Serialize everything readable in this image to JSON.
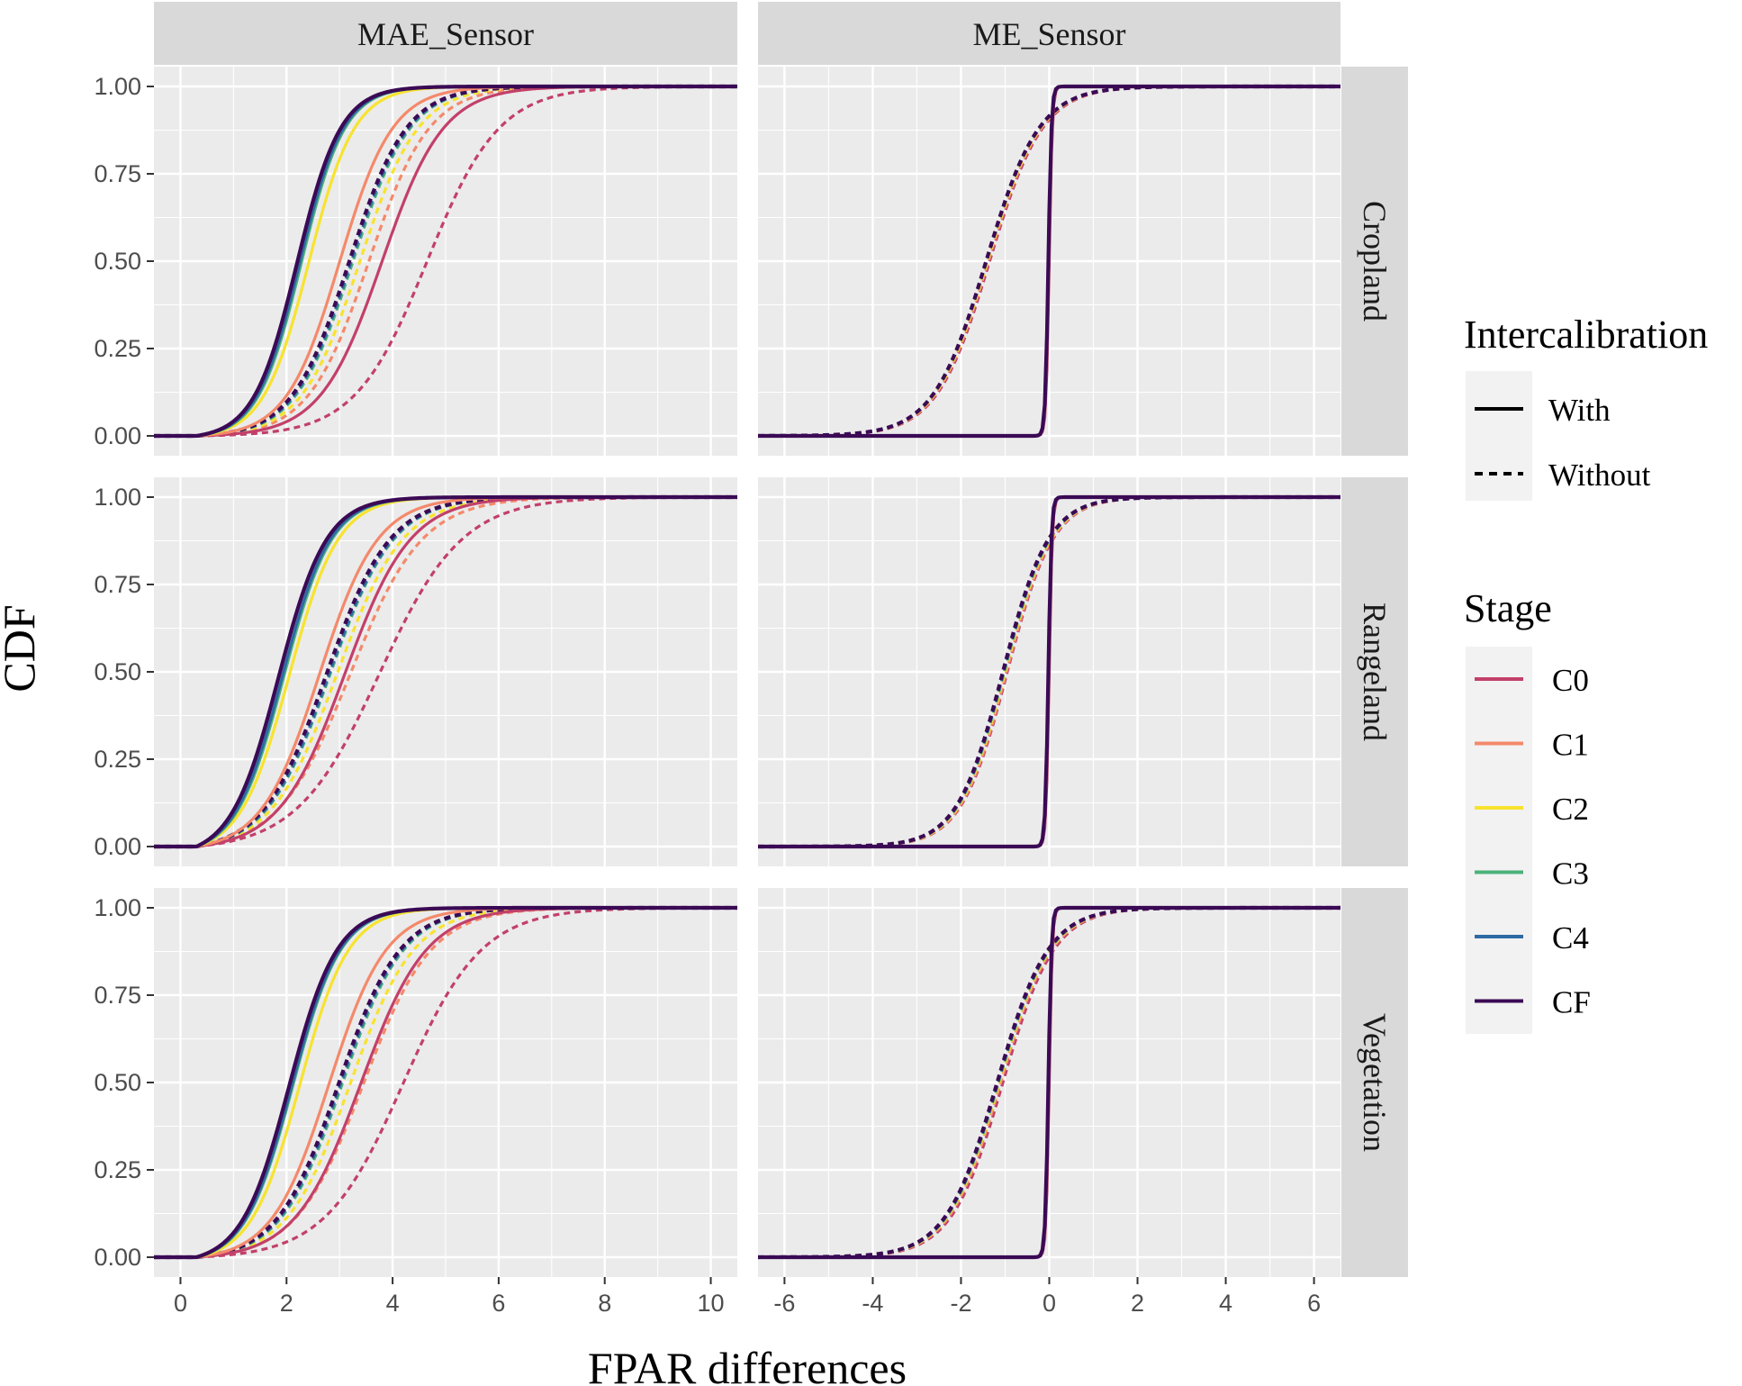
{
  "chart_data": {
    "type": "line",
    "subtype": "faceted CDF curves",
    "ylabel": "CDF",
    "xlabel": "FPAR differences",
    "ylim": [
      0,
      1
    ],
    "y_ticks": [
      "0.00",
      "0.25",
      "0.50",
      "0.75",
      "1.00"
    ],
    "y_tick_values": [
      0,
      0.25,
      0.5,
      0.75,
      1.0
    ],
    "columns": [
      {
        "label": "MAE_Sensor",
        "xlim": [
          -0.5,
          10.5
        ],
        "x_ticks": [
          0,
          2,
          4,
          6,
          8,
          10
        ],
        "x_tick_labels": [
          "0",
          "2",
          "4",
          "6",
          "8",
          "10"
        ]
      },
      {
        "label": "ME_Sensor",
        "xlim": [
          -6.6,
          6.6
        ],
        "x_ticks": [
          -6,
          -4,
          -2,
          0,
          2,
          4,
          6
        ],
        "x_tick_labels": [
          "-6",
          "-4",
          "-2",
          "0",
          "2",
          "4",
          "6"
        ]
      }
    ],
    "rows": [
      "Cropland",
      "Rangeland",
      "Vegetation"
    ],
    "legend_intercalibration": {
      "title": "Intercalibration",
      "items": [
        {
          "label": "With",
          "linetype": "solid"
        },
        {
          "label": "Without",
          "linetype": "dashed"
        }
      ]
    },
    "legend_stage": {
      "title": "Stage",
      "items": [
        {
          "label": "C0",
          "color": "#c2406a"
        },
        {
          "label": "C1",
          "color": "#f4896b"
        },
        {
          "label": "C2",
          "color": "#f7e32e"
        },
        {
          "label": "C3",
          "color": "#4bb27a"
        },
        {
          "label": "C4",
          "color": "#2e6aa3"
        },
        {
          "label": "CF",
          "color": "#3b0a55"
        }
      ]
    },
    "series_params": {
      "note": "Each curve is a logistic CDF with approximate center (median, data units) and scale (data units). One entry per [row][column].",
      "Cropland": {
        "MAE_Sensor": {
          "With": {
            "C0": [
              3.8,
              0.58
            ],
            "C1": [
              3.0,
              0.5
            ],
            "C2": [
              2.42,
              0.43
            ],
            "C3": [
              2.28,
              0.41
            ],
            "C4": [
              2.25,
              0.41
            ],
            "CF": [
              2.2,
              0.41
            ]
          },
          "Without": {
            "C0": [
              4.65,
              0.68
            ],
            "C1": [
              3.55,
              0.57
            ],
            "C2": [
              3.38,
              0.55
            ],
            "C3": [
              3.25,
              0.54
            ],
            "C4": [
              3.22,
              0.54
            ],
            "CF": [
              3.18,
              0.54
            ]
          }
        },
        "ME_Sensor": {
          "With": {
            "C0": [
              0.0,
              0.035
            ],
            "C1": [
              -0.01,
              0.035
            ],
            "C2": [
              -0.02,
              0.035
            ],
            "C3": [
              -0.02,
              0.035
            ],
            "C4": [
              -0.02,
              0.035
            ],
            "CF": [
              -0.02,
              0.035
            ]
          },
          "Without": {
            "C0": [
              -1.35,
              0.6
            ],
            "C1": [
              -1.38,
              0.6
            ],
            "C2": [
              -1.4,
              0.6
            ],
            "C3": [
              -1.42,
              0.6
            ],
            "C4": [
              -1.42,
              0.6
            ],
            "CF": [
              -1.43,
              0.6
            ]
          }
        }
      },
      "Rangeland": {
        "MAE_Sensor": {
          "With": {
            "C0": [
              3.1,
              0.62
            ],
            "C1": [
              2.62,
              0.55
            ],
            "C2": [
              2.05,
              0.46
            ],
            "C3": [
              1.95,
              0.45
            ],
            "C4": [
              1.92,
              0.45
            ],
            "CF": [
              1.85,
              0.45
            ]
          },
          "Without": {
            "C0": [
              3.75,
              0.78
            ],
            "C1": [
              3.2,
              0.68
            ],
            "C2": [
              2.95,
              0.62
            ],
            "C3": [
              2.82,
              0.6
            ],
            "C4": [
              2.8,
              0.6
            ],
            "CF": [
              2.75,
              0.6
            ]
          }
        },
        "ME_Sensor": {
          "With": {
            "C0": [
              0.0,
              0.035
            ],
            "C1": [
              -0.01,
              0.035
            ],
            "C2": [
              -0.02,
              0.035
            ],
            "C3": [
              -0.02,
              0.035
            ],
            "C4": [
              -0.02,
              0.035
            ],
            "CF": [
              -0.02,
              0.035
            ]
          },
          "Without": {
            "C0": [
              -0.95,
              0.52
            ],
            "C1": [
              -0.97,
              0.52
            ],
            "C2": [
              -1.0,
              0.52
            ],
            "C3": [
              -1.02,
              0.52
            ],
            "C4": [
              -1.03,
              0.52
            ],
            "CF": [
              -1.05,
              0.52
            ]
          }
        }
      },
      "Vegetation": {
        "MAE_Sensor": {
          "With": {
            "C0": [
              3.4,
              0.62
            ],
            "C1": [
              2.8,
              0.54
            ],
            "C2": [
              2.25,
              0.46
            ],
            "C3": [
              2.12,
              0.45
            ],
            "C4": [
              2.1,
              0.45
            ],
            "CF": [
              2.05,
              0.45
            ]
          },
          "Without": {
            "C0": [
              4.2,
              0.74
            ],
            "C1": [
              3.45,
              0.64
            ],
            "C2": [
              3.2,
              0.6
            ],
            "C3": [
              3.05,
              0.58
            ],
            "C4": [
              3.02,
              0.58
            ],
            "CF": [
              2.98,
              0.58
            ]
          }
        },
        "ME_Sensor": {
          "With": {
            "C0": [
              0.0,
              0.035
            ],
            "C1": [
              -0.01,
              0.035
            ],
            "C2": [
              -0.02,
              0.035
            ],
            "C3": [
              -0.02,
              0.035
            ],
            "C4": [
              -0.02,
              0.035
            ],
            "CF": [
              -0.02,
              0.035
            ]
          },
          "Without": {
            "C0": [
              -1.05,
              0.58
            ],
            "C1": [
              -1.1,
              0.58
            ],
            "C2": [
              -1.13,
              0.58
            ],
            "C3": [
              -1.15,
              0.58
            ],
            "C4": [
              -1.16,
              0.58
            ],
            "CF": [
              -1.18,
              0.58
            ]
          }
        }
      }
    }
  }
}
